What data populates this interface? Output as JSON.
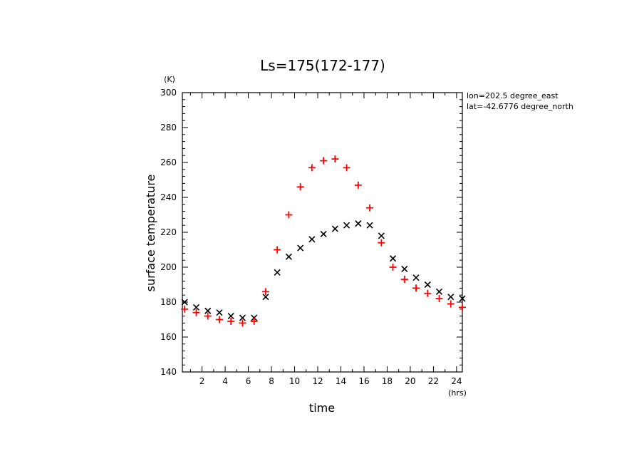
{
  "chart_data": {
    "type": "scatter",
    "title": "Ls=175(172-177)",
    "xlabel": "time",
    "ylabel": "surface temperature",
    "x_unit": "(hrs)",
    "y_unit": "(K)",
    "xlim": [
      0.3,
      24.5
    ],
    "ylim": [
      140,
      300
    ],
    "x_ticks": [
      2,
      4,
      6,
      8,
      10,
      12,
      14,
      16,
      18,
      20,
      22,
      24
    ],
    "y_ticks": [
      140,
      160,
      180,
      200,
      220,
      240,
      260,
      280,
      300
    ],
    "grid": false,
    "annotations": [
      "lon=202.5 degree_east",
      "lat=-42.6776 degree_north"
    ],
    "x": [
      0.5,
      1.5,
      2.5,
      3.5,
      4.5,
      5.5,
      6.5,
      7.5,
      8.5,
      9.5,
      10.5,
      11.5,
      12.5,
      13.5,
      14.5,
      15.5,
      16.5,
      17.5,
      18.5,
      19.5,
      20.5,
      21.5,
      22.5,
      23.5,
      24.5
    ],
    "series": [
      {
        "marker": "x",
        "color": "#000000",
        "values": [
          180,
          177,
          175,
          174,
          172,
          171,
          171,
          183,
          197,
          206,
          211,
          216,
          219,
          222,
          224,
          225,
          224,
          218,
          205,
          199,
          194,
          190,
          186,
          183,
          182
        ]
      },
      {
        "marker": "+",
        "color": "#ff0000",
        "values": [
          176,
          174,
          172,
          170,
          169,
          168,
          169,
          186,
          210,
          230,
          246,
          257,
          261,
          262,
          257,
          247,
          234,
          214,
          200,
          193,
          188,
          185,
          182,
          179,
          177
        ]
      }
    ]
  }
}
